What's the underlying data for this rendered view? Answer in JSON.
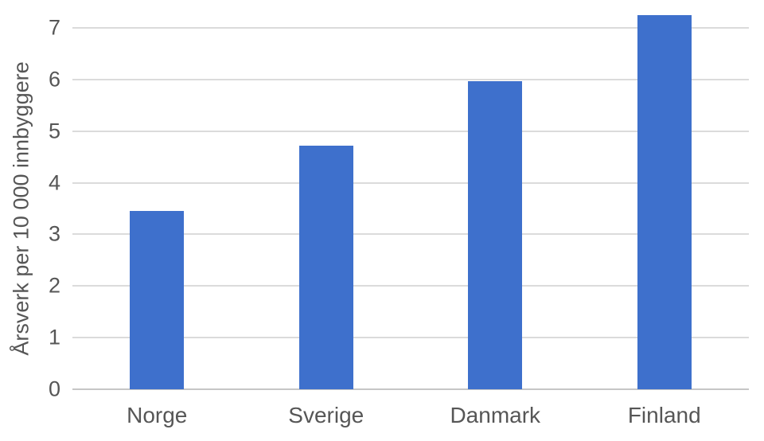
{
  "chart_data": {
    "type": "bar",
    "categories": [
      "Norge",
      "Sverige",
      "Danmark",
      "Finland"
    ],
    "values": [
      3.45,
      4.72,
      5.97,
      7.25
    ],
    "title": "",
    "xlabel": "",
    "ylabel": "Årsverk per 10 000 innbyggere",
    "ylim": [
      0,
      7
    ],
    "yticks": [
      0,
      1,
      2,
      3,
      4,
      5,
      6,
      7
    ],
    "grid": "horizontal",
    "legend": "none",
    "colors": {
      "bar": "#3E70CC",
      "gridline": "#DBDBDB",
      "axis_line": "#C6C6C6",
      "text": "#565656",
      "background": "#FFFFFF"
    }
  }
}
